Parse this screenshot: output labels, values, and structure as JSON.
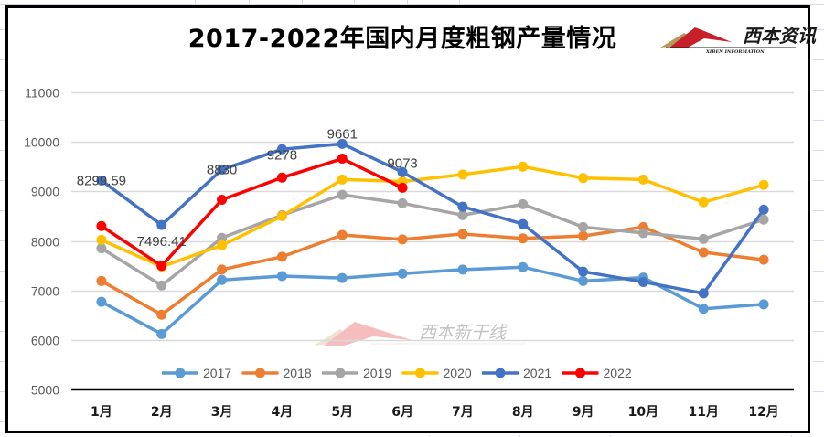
{
  "chart_data": {
    "type": "line",
    "title": "2017-2022年国内月度粗钢产量情况",
    "xlabel": "",
    "ylabel": "",
    "ylim": [
      5000,
      11000
    ],
    "yticks": [
      5000,
      6000,
      7000,
      8000,
      9000,
      10000,
      11000
    ],
    "grid": true,
    "legend_position": "bottom",
    "categories": [
      "1月",
      "2月",
      "3月",
      "4月",
      "5月",
      "6月",
      "7月",
      "8月",
      "9月",
      "10月",
      "11月",
      "12月"
    ],
    "series": [
      {
        "name": "2017",
        "color": "#5B9BD5",
        "values": [
          6770,
          6120,
          7210,
          7290,
          7250,
          7340,
          7420,
          7470,
          7190,
          7260,
          6630,
          6720
        ]
      },
      {
        "name": "2018",
        "color": "#ED7D31",
        "values": [
          7190,
          6510,
          7420,
          7680,
          8120,
          8030,
          8140,
          8050,
          8100,
          8280,
          7770,
          7620
        ]
      },
      {
        "name": "2019",
        "color": "#A5A5A5",
        "values": [
          7850,
          7100,
          8060,
          8520,
          8930,
          8760,
          8520,
          8740,
          8280,
          8160,
          8040,
          8430
        ]
      },
      {
        "name": "2020",
        "color": "#FFC000",
        "values": [
          8020,
          7480,
          7910,
          8500,
          9240,
          9200,
          9340,
          9500,
          9270,
          9240,
          8780,
          9130
        ]
      },
      {
        "name": "2021",
        "color": "#4472C4",
        "values": [
          9220,
          8320,
          9440,
          9850,
          9960,
          9390,
          8690,
          8340,
          7380,
          7170,
          6940,
          8630
        ]
      },
      {
        "name": "2022",
        "color": "#FF0000",
        "values": [
          8299.59,
          7496.41,
          8830,
          9278,
          9661,
          9073,
          null,
          null,
          null,
          null,
          null,
          null
        ],
        "data_labels": [
          "8299.59",
          "7496.41",
          "8830",
          "9278",
          "9661",
          "9073"
        ]
      }
    ]
  },
  "logo": {
    "name_cn": "西本资讯",
    "name_en": "XIBEN INFORMATION"
  },
  "watermark": {
    "name_cn": "西本新干线"
  }
}
